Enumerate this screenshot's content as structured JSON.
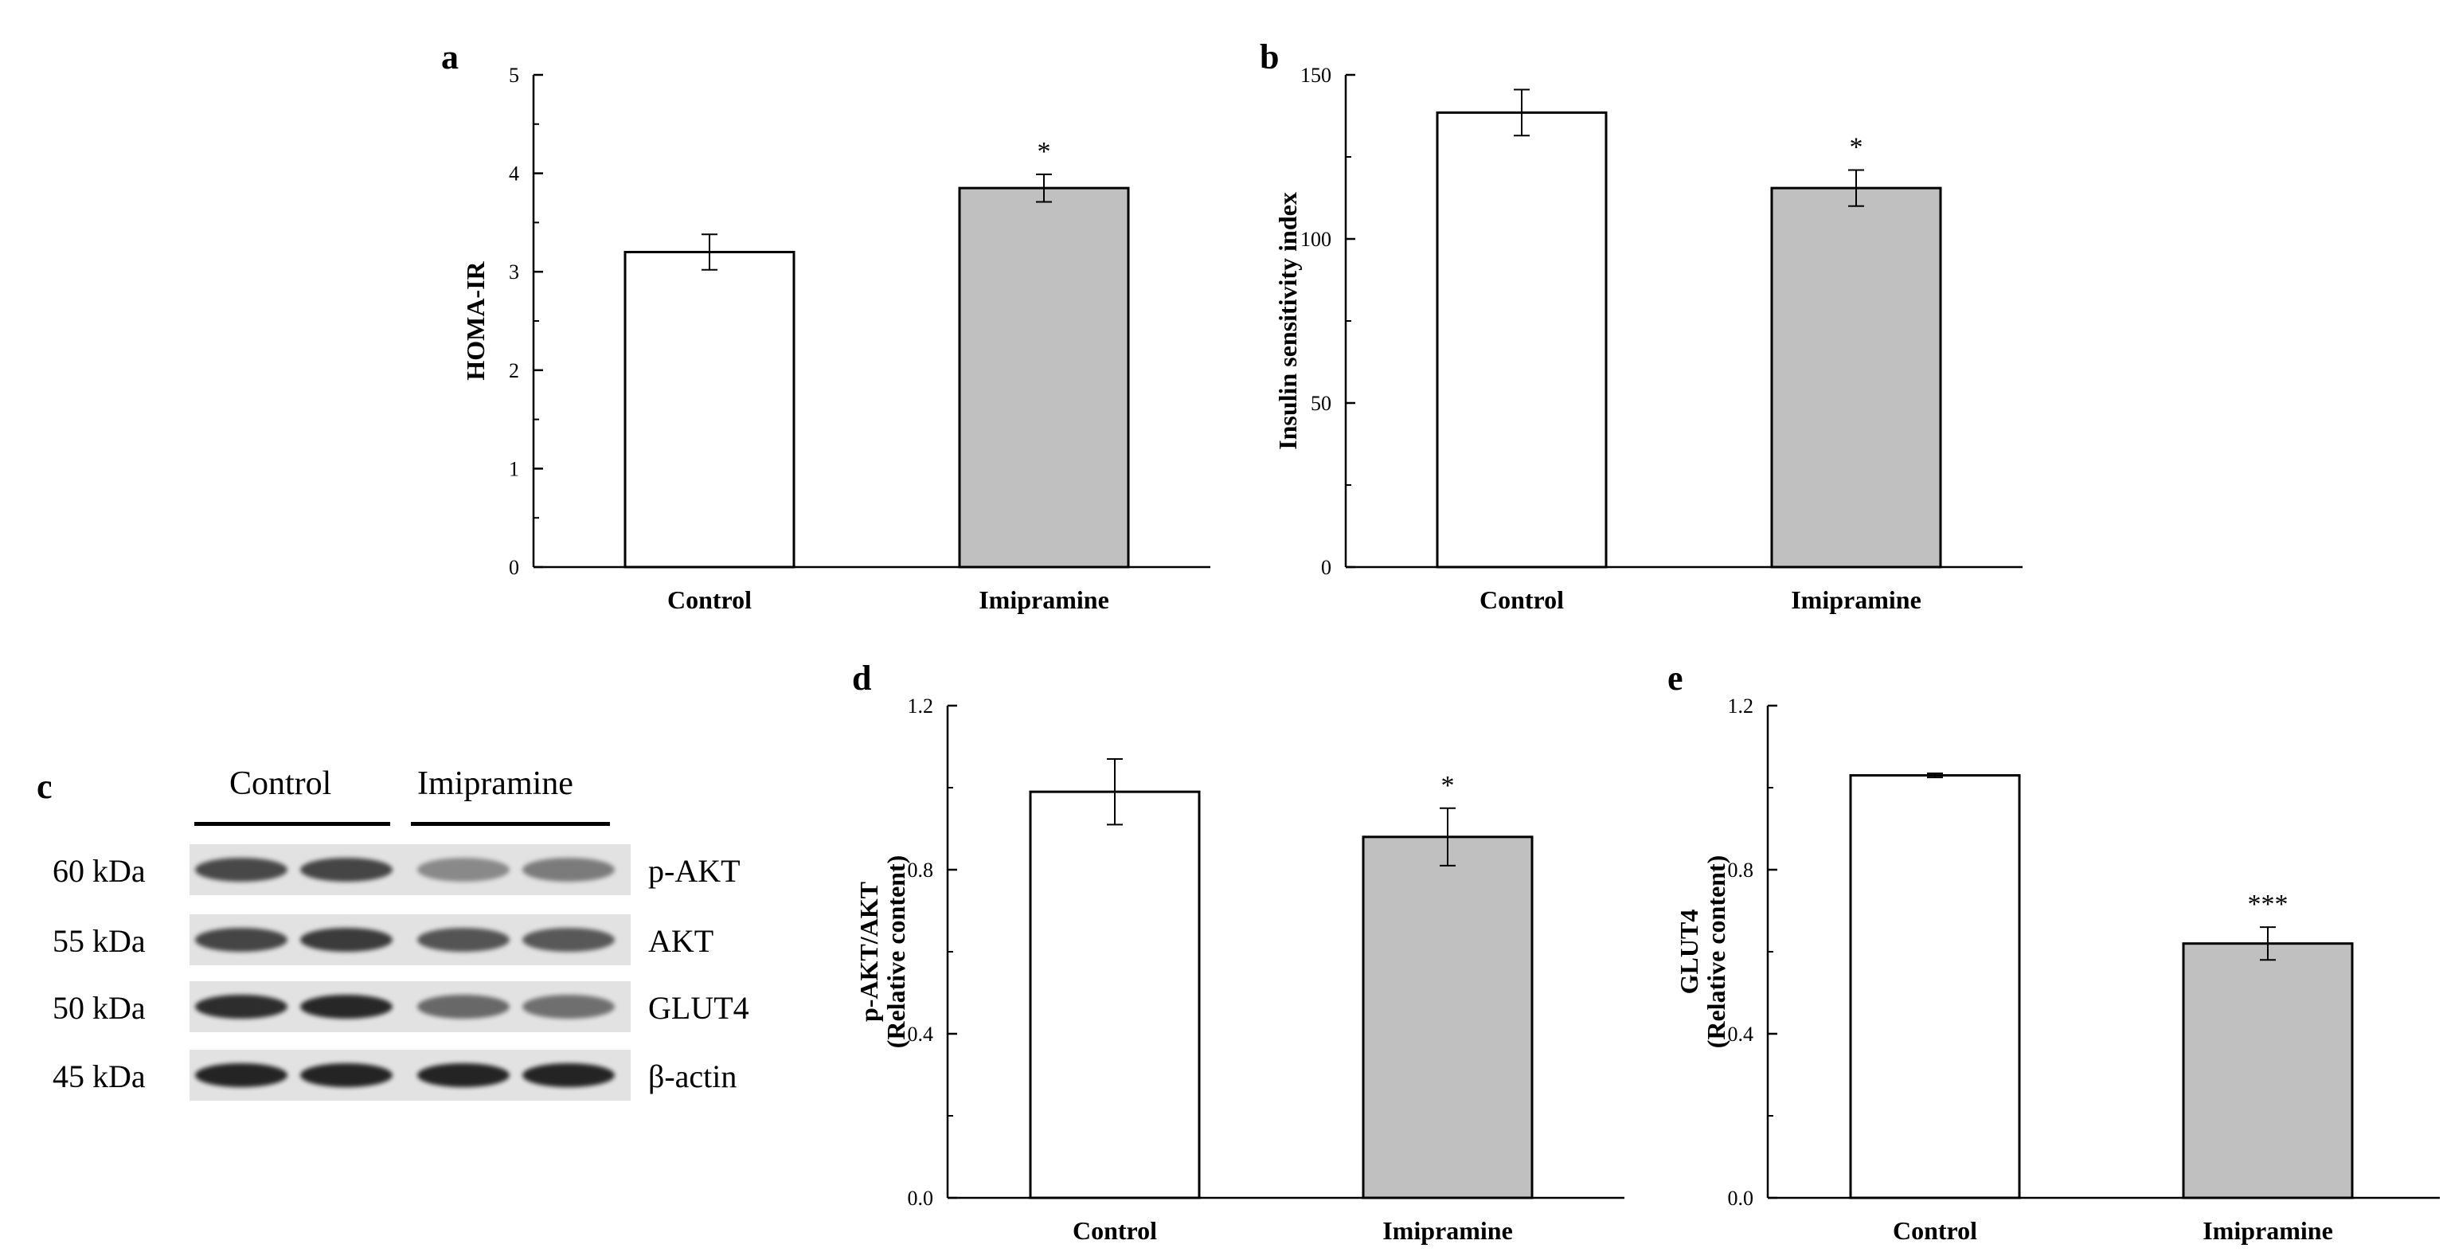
{
  "colors": {
    "control_bar": "#ffffff",
    "imipramine_bar": "#c0c0c0",
    "axis": "#000000",
    "blot_bg": "#e2e2e2",
    "band": "#1e1e1e"
  },
  "chart_data": [
    {
      "panel": "a",
      "type": "bar",
      "categories": [
        "Control",
        "Imipramine"
      ],
      "values": [
        3.2,
        3.85
      ],
      "errors": [
        0.18,
        0.14
      ],
      "significance": [
        "",
        "*"
      ],
      "ylabel": "HOMA-IR",
      "ylabel2": "",
      "ylim": [
        0,
        5
      ],
      "yticks": [
        0,
        1,
        2,
        3,
        4,
        5
      ],
      "ytick_labels": [
        "0",
        "1",
        "2",
        "3",
        "4",
        "5"
      ]
    },
    {
      "panel": "b",
      "type": "bar",
      "categories": [
        "Control",
        "Imipramine"
      ],
      "values": [
        138.5,
        115.5
      ],
      "errors": [
        7,
        5.5
      ],
      "significance": [
        "",
        "*"
      ],
      "ylabel": "Insulin sensitivity index",
      "ylabel2": "",
      "ylim": [
        0,
        150
      ],
      "yticks": [
        0,
        50,
        100,
        150
      ],
      "ytick_labels": [
        "0",
        "50",
        "100",
        "150"
      ]
    },
    {
      "panel": "d",
      "type": "bar",
      "categories": [
        "Control",
        "Imipramine"
      ],
      "values": [
        0.99,
        0.88
      ],
      "errors": [
        0.08,
        0.07
      ],
      "significance": [
        "",
        "*"
      ],
      "ylabel": "p-AKT/AKT",
      "ylabel2": "(Relative content)",
      "ylim": [
        0,
        1.2
      ],
      "yticks": [
        0,
        0.4,
        0.8,
        1.2
      ],
      "ytick_labels": [
        "0.0",
        "0.4",
        "0.8",
        "1.2"
      ]
    },
    {
      "panel": "e",
      "type": "bar",
      "categories": [
        "Control",
        "Imipramine"
      ],
      "values": [
        1.03,
        0.62
      ],
      "errors": [
        0.005,
        0.04
      ],
      "significance": [
        "",
        "***"
      ],
      "ylabel": "GLUT4",
      "ylabel2": "(Relative content)",
      "ylim": [
        0,
        1.2
      ],
      "yticks": [
        0,
        0.4,
        0.8,
        1.2
      ],
      "ytick_labels": [
        "0.0",
        "0.4",
        "0.8",
        "1.2"
      ]
    }
  ],
  "blot": {
    "panel": "c",
    "groups": [
      "Control",
      "Imipramine"
    ],
    "rows": [
      {
        "size": "60 kDa",
        "protein": "p-AKT",
        "band_intensity": [
          0.78,
          0.8,
          0.45,
          0.52
        ]
      },
      {
        "size": "55 kDa",
        "protein": "AKT",
        "band_intensity": [
          0.8,
          0.85,
          0.72,
          0.7
        ]
      },
      {
        "size": "50 kDa",
        "protein": "GLUT4",
        "band_intensity": [
          0.92,
          0.95,
          0.62,
          0.58
        ]
      },
      {
        "size": "45 kDa",
        "protein": "β-actin",
        "band_intensity": [
          0.97,
          0.97,
          0.97,
          0.97
        ]
      }
    ]
  }
}
